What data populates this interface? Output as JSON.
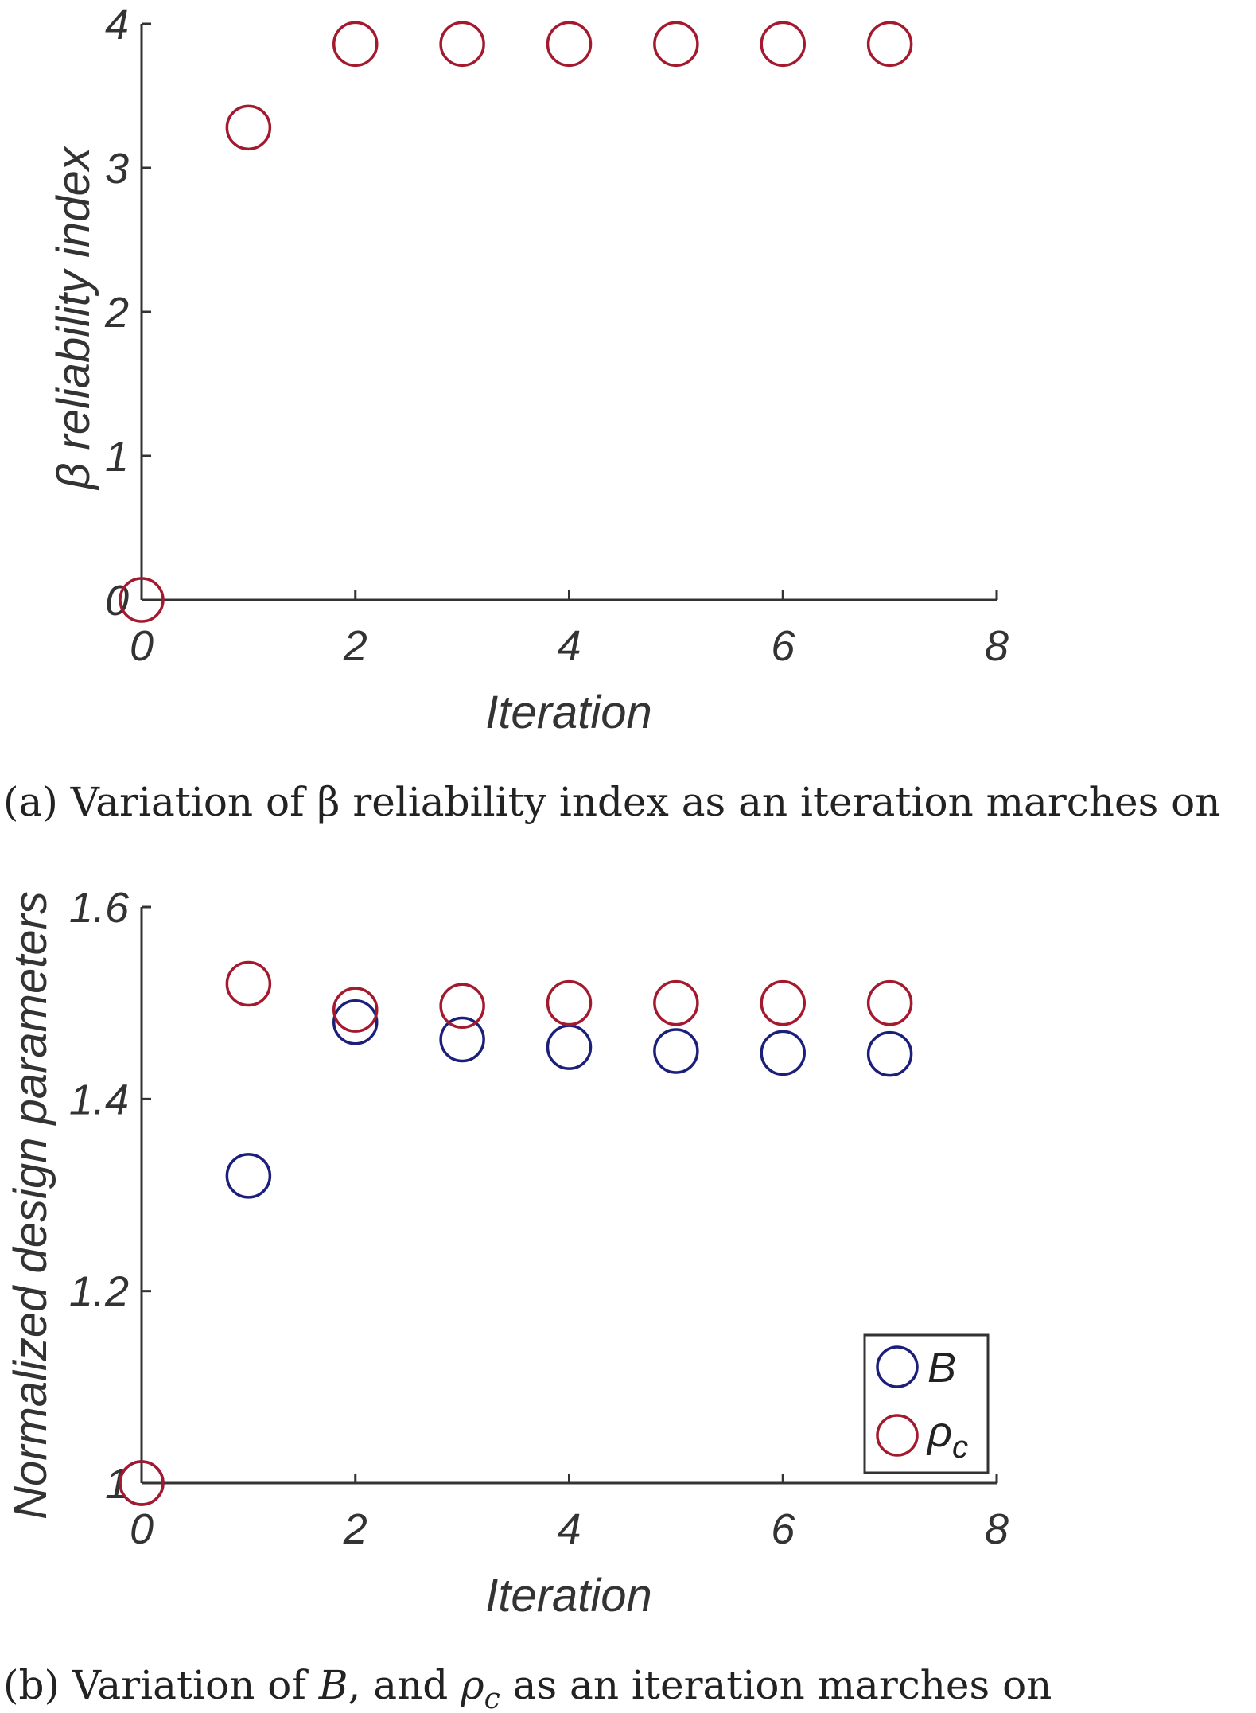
{
  "chart_data": [
    {
      "type": "scatter",
      "id": "a",
      "caption": "(a) Variation of β reliability index as an iteration marches on",
      "xlabel": "Iteration",
      "ylabel": "β reliability index",
      "xlim": [
        0,
        8
      ],
      "ylim": [
        0,
        4
      ],
      "xticks": [
        "0",
        "2",
        "4",
        "6",
        "8"
      ],
      "yticks": [
        "0",
        "1",
        "2",
        "3",
        "4"
      ],
      "series": [
        {
          "name": "β",
          "color": "#a3192e",
          "x": [
            0,
            1,
            2,
            3,
            4,
            5,
            6,
            7
          ],
          "y": [
            0,
            3.28,
            3.86,
            3.86,
            3.86,
            3.86,
            3.86,
            3.86
          ]
        }
      ]
    },
    {
      "type": "scatter",
      "id": "b",
      "caption_parts": [
        "(b) Variation of ",
        "B",
        ", and ",
        "ρ",
        "c",
        " as an iteration marches on"
      ],
      "xlabel": "Iteration",
      "ylabel": "Normalized design parameters",
      "xlim": [
        0,
        8
      ],
      "ylim": [
        1.0,
        1.6
      ],
      "xticks": [
        "0",
        "2",
        "4",
        "6",
        "8"
      ],
      "yticks": [
        "1",
        "1.2",
        "1.4",
        "1.6"
      ],
      "legend_position": "bottom-right",
      "series": [
        {
          "name": "B",
          "color": "#1c1f7a",
          "x": [
            0,
            1,
            2,
            3,
            4,
            5,
            6,
            7
          ],
          "y": [
            1.0,
            1.32,
            1.48,
            1.462,
            1.454,
            1.45,
            1.448,
            1.447
          ]
        },
        {
          "name": "ρ",
          "subscript": "c",
          "color": "#a3192e",
          "x": [
            0,
            1,
            2,
            3,
            4,
            5,
            6,
            7
          ],
          "y": [
            1.0,
            1.52,
            1.493,
            1.497,
            1.5,
            1.5,
            1.5,
            1.5
          ]
        }
      ]
    }
  ]
}
